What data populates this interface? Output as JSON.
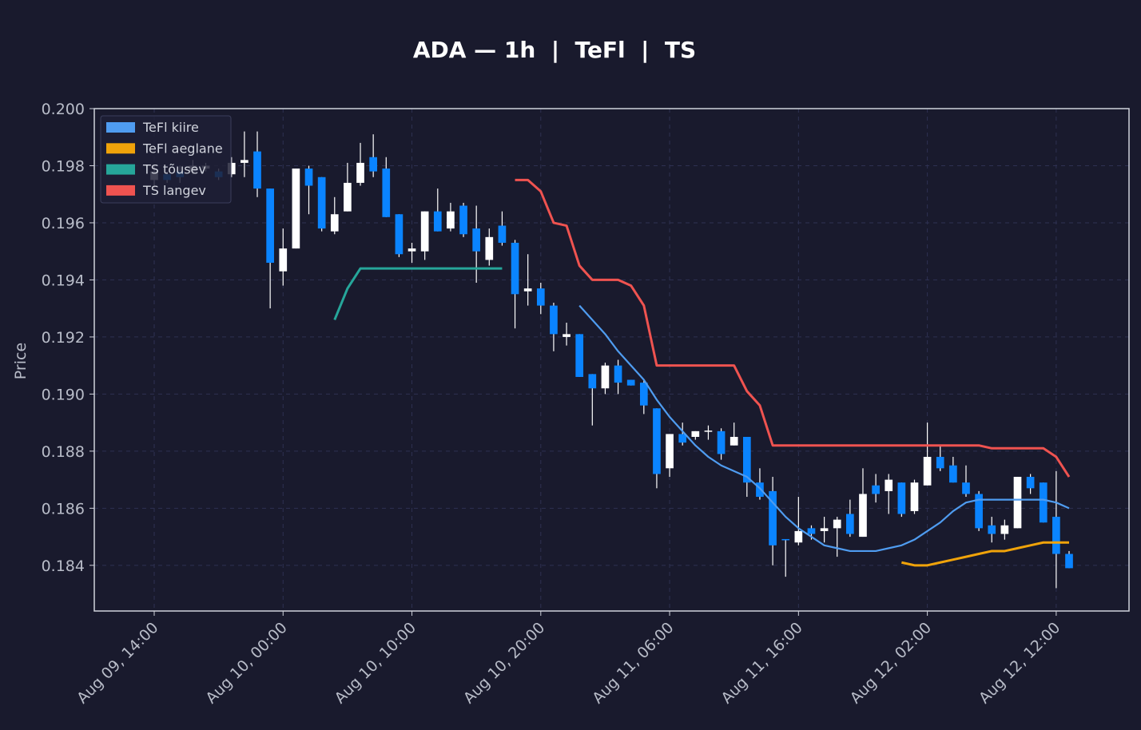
{
  "chart_data": {
    "type": "candlestick",
    "title": "ADA — 1h  |  TeFl  |  TS",
    "y_label": "Price",
    "categories": [
      "Aug 09, 14:00",
      null,
      null,
      null,
      null,
      null,
      null,
      null,
      null,
      null,
      "Aug 10, 00:00",
      null,
      null,
      null,
      null,
      null,
      null,
      null,
      null,
      null,
      "Aug 10, 10:00",
      null,
      null,
      null,
      null,
      null,
      null,
      null,
      null,
      null,
      "Aug 10, 20:00",
      null,
      null,
      null,
      null,
      null,
      null,
      null,
      null,
      null,
      "Aug 11, 06:00",
      null,
      null,
      null,
      null,
      null,
      null,
      null,
      null,
      null,
      "Aug 11, 16:00",
      null,
      null,
      null,
      null,
      null,
      null,
      null,
      null,
      null,
      "Aug 12, 02:00",
      null,
      null,
      null,
      null,
      null,
      null,
      null,
      null,
      null,
      "Aug 12, 12:00",
      null
    ],
    "open": [
      0.1975,
      0.1977,
      0.1978,
      0.1978,
      0.1979,
      0.1978,
      0.1977,
      0.1981,
      0.1985,
      0.1972,
      0.1943,
      0.1951,
      0.1979,
      0.1976,
      0.1957,
      0.1964,
      0.1974,
      0.1983,
      0.1979,
      0.1963,
      0.195,
      0.195,
      0.1964,
      0.1958,
      0.1966,
      0.1958,
      0.1947,
      0.1959,
      0.1953,
      0.1936,
      0.1937,
      0.1931,
      0.192,
      0.1921,
      0.1907,
      0.1902,
      0.191,
      0.1905,
      0.1904,
      0.1895,
      0.1874,
      0.1886,
      0.1885,
      0.18868,
      0.1887,
      0.1882,
      0.1885,
      0.1869,
      0.1866,
      0.18492,
      0.1848,
      0.1853,
      0.1852,
      0.1853,
      0.1858,
      0.185,
      0.1868,
      0.1866,
      0.1869,
      0.1859,
      0.1868,
      0.1878,
      0.1875,
      0.1869,
      0.1865,
      0.1854,
      0.1851,
      0.1853,
      0.1871,
      0.1869,
      0.1857,
      0.1844
    ],
    "high": [
      0.198,
      0.1978,
      0.198,
      0.1982,
      0.1981,
      0.1979,
      0.1983,
      0.1992,
      0.1992,
      0.1972,
      0.1958,
      0.1979,
      0.198,
      0.1976,
      0.1969,
      0.1981,
      0.1988,
      0.1991,
      0.1983,
      0.1963,
      0.1953,
      0.1964,
      0.1972,
      0.1967,
      0.1967,
      0.1966,
      0.1958,
      0.1964,
      0.1954,
      0.1949,
      0.1939,
      0.1932,
      0.1925,
      0.1921,
      0.1907,
      0.1911,
      0.1912,
      0.1905,
      0.1905,
      0.1895,
      0.1886,
      0.189,
      0.1887,
      0.1889,
      0.1888,
      0.189,
      0.1885,
      0.1874,
      0.1871,
      0.1849,
      0.1864,
      0.1854,
      0.1857,
      0.1857,
      0.1863,
      0.1874,
      0.1872,
      0.1872,
      0.1869,
      0.187,
      0.189,
      0.1882,
      0.1878,
      0.1875,
      0.1866,
      0.1857,
      0.1856,
      0.1871,
      0.1872,
      0.1869,
      0.1873,
      0.1845
    ],
    "low": [
      0.1972,
      0.1974,
      0.1974,
      0.1977,
      0.1978,
      0.1975,
      0.1976,
      0.1976,
      0.1969,
      0.193,
      0.1938,
      0.1951,
      0.1963,
      0.1957,
      0.1956,
      0.1964,
      0.1973,
      0.1976,
      0.1962,
      0.1948,
      0.1946,
      0.1947,
      0.1957,
      0.1957,
      0.1955,
      0.1939,
      0.1945,
      0.1952,
      0.1923,
      0.1931,
      0.1928,
      0.1915,
      0.1917,
      0.1906,
      0.1889,
      0.19,
      0.19,
      0.1903,
      0.1893,
      0.1867,
      0.1871,
      0.1882,
      0.1884,
      0.1884,
      0.1877,
      0.1882,
      0.1864,
      0.1863,
      0.184,
      0.1836,
      0.1847,
      0.1849,
      0.1848,
      0.1843,
      0.185,
      0.185,
      0.1862,
      0.1858,
      0.1857,
      0.1858,
      0.1868,
      0.1873,
      0.1869,
      0.1864,
      0.1852,
      0.1848,
      0.1849,
      0.1853,
      0.1865,
      0.1855,
      0.1832,
      0.1839
    ],
    "close": [
      0.1978,
      0.1975,
      0.1976,
      0.198,
      0.198,
      0.1976,
      0.1981,
      0.1982,
      0.1972,
      0.1946,
      0.1951,
      0.1979,
      0.1973,
      0.1958,
      0.1963,
      0.1974,
      0.1981,
      0.1978,
      0.1962,
      0.1949,
      0.1951,
      0.1964,
      0.1957,
      0.1964,
      0.1956,
      0.195,
      0.1955,
      0.1953,
      0.1935,
      0.1937,
      0.1931,
      0.1921,
      0.1921,
      0.1906,
      0.1902,
      0.191,
      0.1904,
      0.1903,
      0.1896,
      0.1872,
      0.1886,
      0.1883,
      0.1887,
      0.18872,
      0.1879,
      0.1885,
      0.1869,
      0.1864,
      0.1847,
      0.18488,
      0.1852,
      0.1851,
      0.1853,
      0.1856,
      0.1851,
      0.1865,
      0.1865,
      0.187,
      0.1858,
      0.1869,
      0.1878,
      0.1874,
      0.1869,
      0.1865,
      0.1853,
      0.1851,
      0.1854,
      0.1871,
      0.1867,
      0.1855,
      0.1844,
      0.1839
    ],
    "up_color": "#ffffff",
    "down_color": "#0a84ff",
    "overlays": [
      {
        "name": "TeFl kiire",
        "color": "#4f9cf0",
        "values": [
          null,
          null,
          null,
          null,
          null,
          null,
          null,
          null,
          null,
          null,
          null,
          null,
          null,
          null,
          null,
          null,
          null,
          null,
          null,
          null,
          null,
          null,
          null,
          null,
          null,
          null,
          null,
          null,
          null,
          null,
          null,
          null,
          null,
          0.1931,
          0.1926,
          0.1921,
          0.1915,
          0.191,
          0.1905,
          0.1898,
          0.1892,
          0.1887,
          0.1882,
          0.1878,
          0.1875,
          0.1873,
          0.1871,
          0.1867,
          0.1862,
          0.1857,
          0.1853,
          0.185,
          0.1847,
          0.1846,
          0.1845,
          0.1845,
          0.1845,
          0.1846,
          0.1847,
          0.1849,
          0.1852,
          0.1855,
          0.1859,
          0.1862,
          0.1863,
          0.1863,
          0.1863,
          0.1863,
          0.1863,
          0.1863,
          0.1862,
          0.186
        ]
      },
      {
        "name": "TeFl aeglane",
        "color": "#f0a30a",
        "values": [
          null,
          null,
          null,
          null,
          null,
          null,
          null,
          null,
          null,
          null,
          null,
          null,
          null,
          null,
          null,
          null,
          null,
          null,
          null,
          null,
          null,
          null,
          null,
          null,
          null,
          null,
          null,
          null,
          null,
          null,
          null,
          null,
          null,
          null,
          null,
          null,
          null,
          null,
          null,
          null,
          null,
          null,
          null,
          null,
          null,
          null,
          null,
          null,
          null,
          null,
          null,
          null,
          null,
          null,
          null,
          null,
          null,
          null,
          0.1841,
          0.184,
          0.184,
          0.1841,
          0.1842,
          0.1843,
          0.1844,
          0.1845,
          0.1845,
          0.1846,
          0.1847,
          0.1848,
          0.1848,
          0.1848
        ]
      },
      {
        "name": "TS tõusev",
        "color": "#26a69a",
        "values": [
          null,
          null,
          null,
          null,
          null,
          null,
          null,
          null,
          null,
          null,
          null,
          null,
          null,
          null,
          0.1926,
          0.1937,
          0.1944,
          0.1944,
          0.1944,
          0.1944,
          0.1944,
          0.1944,
          0.1944,
          0.1944,
          0.1944,
          0.1944,
          0.1944,
          0.1944,
          null,
          null,
          null,
          null,
          null,
          null,
          null,
          null,
          null,
          null,
          null,
          null,
          null,
          null,
          null,
          null,
          null,
          null,
          null,
          null,
          null,
          null,
          null,
          null,
          null,
          null,
          null,
          null,
          null,
          null,
          null,
          null,
          null,
          null,
          null,
          null,
          null,
          null,
          null,
          null,
          null,
          null,
          null,
          null
        ]
      },
      {
        "name": "TS langev",
        "color": "#ef5350",
        "values": [
          null,
          null,
          null,
          null,
          null,
          null,
          null,
          null,
          null,
          null,
          null,
          null,
          null,
          null,
          null,
          null,
          null,
          null,
          null,
          null,
          null,
          null,
          null,
          null,
          null,
          null,
          null,
          null,
          0.1975,
          0.1975,
          0.1971,
          0.196,
          0.1959,
          0.1945,
          0.194,
          0.194,
          0.194,
          0.1938,
          0.1931,
          0.191,
          0.191,
          0.191,
          0.191,
          0.191,
          0.191,
          0.191,
          0.1901,
          0.1896,
          0.1882,
          0.1882,
          0.1882,
          0.1882,
          0.1882,
          0.1882,
          0.1882,
          0.1882,
          0.1882,
          0.1882,
          0.1882,
          0.1882,
          0.1882,
          0.1882,
          0.1882,
          0.1882,
          0.1882,
          0.1881,
          0.1881,
          0.1881,
          0.1881,
          0.1881,
          0.1878,
          0.1871
        ]
      }
    ],
    "ylim": [
      0.1824,
      0.2
    ],
    "yticks": [
      0.184,
      0.186,
      0.188,
      {
        "value": 0.19,
        "label": "0.190"
      },
      0.192,
      0.194,
      0.196,
      0.198,
      {
        "value": 0.2,
        "label": "0.200"
      }
    ],
    "grid": true,
    "legend": "upper left"
  }
}
